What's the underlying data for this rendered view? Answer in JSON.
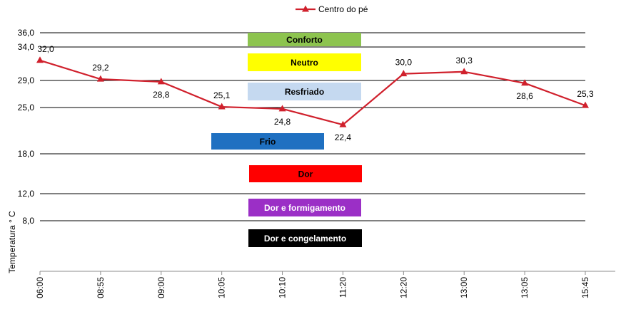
{
  "chart_data": {
    "type": "line",
    "categories": [
      "06:00",
      "08:55",
      "09:00",
      "10:05",
      "10:10",
      "11:20",
      "12:20",
      "13:00",
      "13:05",
      "15:45"
    ],
    "series": [
      {
        "name": "Centro do pé",
        "values": [
          32.0,
          29.2,
          28.8,
          25.1,
          24.8,
          22.4,
          30.0,
          30.3,
          28.6,
          25.3
        ],
        "data_labels": [
          "32,0",
          "29,2",
          "28,8",
          "25,1",
          "24,8",
          "22,4",
          "30,0",
          "30,3",
          "28,6",
          "25,3"
        ],
        "color": "#d0202c",
        "marker": "triangle"
      }
    ],
    "xlabel": "",
    "ylabel": "Temperatura ° C",
    "y_ticks": [
      {
        "value": 36,
        "label": "36,0"
      },
      {
        "value": 34,
        "label": "34,0"
      },
      {
        "value": 29,
        "label": "29,0"
      },
      {
        "value": 25,
        "label": "25,0"
      },
      {
        "value": 18,
        "label": "18,0"
      },
      {
        "value": 12,
        "label": "12,0"
      },
      {
        "value": 8,
        "label": "8,0"
      }
    ],
    "legend": {
      "position": "top-center",
      "entries": [
        "Centro do pé"
      ]
    },
    "grid": true,
    "bands": [
      {
        "label": "Conforto",
        "color": "#8dc44f",
        "text_color": "#000000"
      },
      {
        "label": "Neutro",
        "color": "#ffff00",
        "text_color": "#000000"
      },
      {
        "label": "Resfriado",
        "color": "#c5d9f0",
        "text_color": "#000000"
      },
      {
        "label": "Frio",
        "color": "#1f70c1",
        "text_color": "#000000"
      },
      {
        "label": "Dor",
        "color": "#ff0000",
        "text_color": "#000000"
      },
      {
        "label": "Dor e formigamento",
        "color": "#9b2fc6",
        "text_color": "#ffffff"
      },
      {
        "label": "Dor e congelamento",
        "color": "#000000",
        "text_color": "#ffffff"
      }
    ]
  }
}
